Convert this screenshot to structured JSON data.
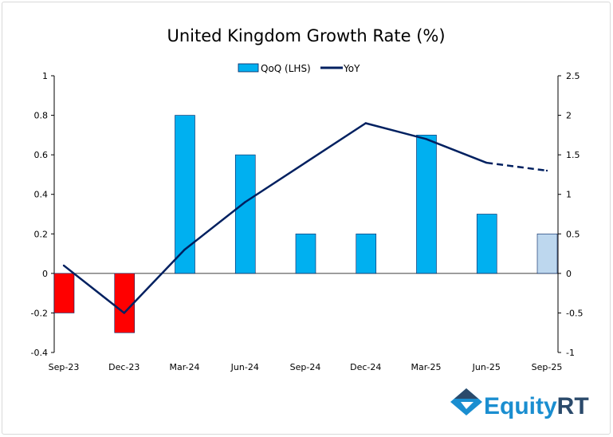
{
  "chart_data": {
    "type": "bar+line",
    "title": "United Kingdom Growth Rate (%)",
    "categories": [
      "Sep-23",
      "Dec-23",
      "Mar-24",
      "Jun-24",
      "Sep-24",
      "Dec-24",
      "Mar-25",
      "Jun-25",
      "Sep-25"
    ],
    "series": [
      {
        "name": "QoQ (LHS)",
        "type": "bar",
        "axis": "left",
        "values": [
          -0.2,
          -0.3,
          0.8,
          0.6,
          0.2,
          0.2,
          0.7,
          0.3,
          0.2
        ],
        "colors": [
          "#ff0000",
          "#ff0000",
          "#00b0f0",
          "#00b0f0",
          "#00b0f0",
          "#00b0f0",
          "#00b0f0",
          "#00b0f0",
          "#bdd7ee"
        ]
      },
      {
        "name": "YoY",
        "type": "line",
        "axis": "right",
        "values": [
          0.1,
          -0.5,
          0.3,
          0.9,
          1.4,
          1.9,
          1.7,
          1.4,
          1.3
        ],
        "dashed_from_index": 7,
        "color": "#002060"
      }
    ],
    "left_axis": {
      "ylim": [
        -0.4,
        1
      ],
      "ticks": [
        "-0.4",
        "-0.2",
        "0",
        "0.2",
        "0.4",
        "0.6",
        "0.8",
        "1"
      ]
    },
    "right_axis": {
      "ylim": [
        -1,
        2.5
      ],
      "ticks": [
        "-1",
        "-0.5",
        "0",
        "0.5",
        "1",
        "1.5",
        "2",
        "2.5"
      ]
    },
    "grid": false,
    "legend_position": "top"
  },
  "logo": {
    "text_a": "Equity",
    "text_b": "RT"
  }
}
